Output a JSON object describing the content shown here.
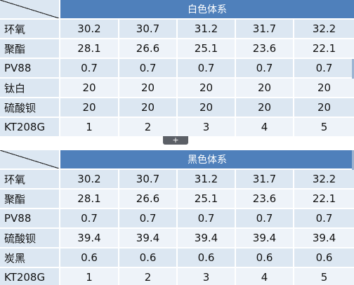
{
  "tables": [
    {
      "title": "白色体系",
      "rows": [
        {
          "label": "环氧",
          "values": [
            "30.2",
            "30.7",
            "31.2",
            "31.7",
            "32.2"
          ]
        },
        {
          "label": "聚酯",
          "values": [
            "28.1",
            "26.6",
            "25.1",
            "23.6",
            "22.1"
          ]
        },
        {
          "label": "PV88",
          "values": [
            "0.7",
            "0.7",
            "0.7",
            "0.7",
            "0.7"
          ]
        },
        {
          "label": "钛白",
          "values": [
            "20",
            "20",
            "20",
            "20",
            "20"
          ]
        },
        {
          "label": "硫酸钡",
          "values": [
            "20",
            "20",
            "20",
            "20",
            "20"
          ]
        },
        {
          "label": "KT208G",
          "values": [
            "1",
            "2",
            "3",
            "4",
            "5"
          ]
        }
      ]
    },
    {
      "title": "黑色体系",
      "rows": [
        {
          "label": "环氧",
          "values": [
            "30.2",
            "30.7",
            "31.2",
            "31.7",
            "32.2"
          ]
        },
        {
          "label": "聚酯",
          "values": [
            "28.1",
            "26.6",
            "25.1",
            "23.6",
            "22.1"
          ]
        },
        {
          "label": "PV88",
          "values": [
            "0.7",
            "0.7",
            "0.7",
            "0.7",
            "0.7"
          ]
        },
        {
          "label": "硫酸钡",
          "values": [
            "39.4",
            "39.4",
            "39.4",
            "39.4",
            "39.4"
          ]
        },
        {
          "label": "炭黑",
          "values": [
            "0.6",
            "0.6",
            "0.6",
            "0.6",
            "0.6"
          ]
        },
        {
          "label": "KT208G",
          "values": [
            "1",
            "2",
            "3",
            "4",
            "5"
          ]
        }
      ]
    }
  ],
  "toggle": {
    "symbol": "+",
    "icon": "plus-icon"
  },
  "colors": {
    "header": "#4f80bb",
    "band_dark": "#dce7f2",
    "band_light": "#eef3f9"
  }
}
